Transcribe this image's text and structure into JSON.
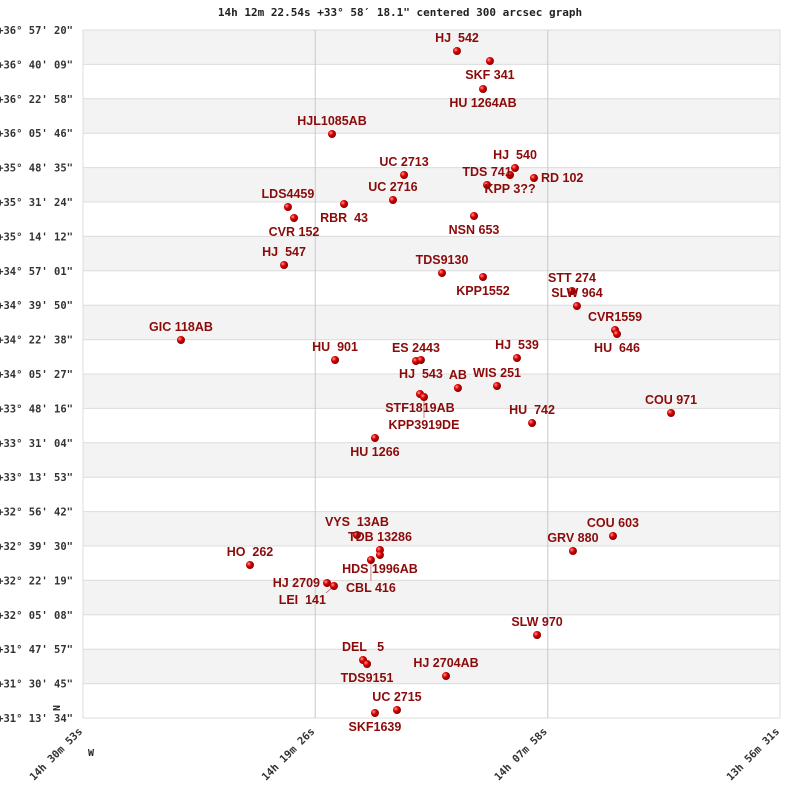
{
  "chart_data": {
    "type": "scatter",
    "title": "14h 12m 22.54s +33° 58′ 18.1\" centered 300 arcsec graph",
    "x_axis": {
      "quantity": "RA (hours)",
      "range": [
        14.51472,
        13.94194
      ],
      "tick_values": [
        14.51472,
        14.32389,
        14.13278,
        13.94194
      ],
      "tick_labels": [
        "14h 30m 53s",
        "14h 19m 26s",
        "14h 07m 58s",
        "13h 56m 31s"
      ]
    },
    "y_axis": {
      "quantity": "Dec (degrees)",
      "range": [
        36.95556,
        31.22611
      ],
      "tick_labels": [
        "+36° 57' 20\"",
        "+36° 40' 09\"",
        "+36° 22' 58\"",
        "+36° 05' 46\"",
        "+35° 48' 35\"",
        "+35° 31' 24\"",
        "+35° 14' 12\"",
        "+34° 57' 01\"",
        "+34° 39' 50\"",
        "+34° 22' 38\"",
        "+34° 05' 27\"",
        "+33° 48' 16\"",
        "+33° 31' 04\"",
        "+33° 13' 53\"",
        "+32° 56' 42\"",
        "+32° 39' 30\"",
        "+32° 22' 19\"",
        "+32° 05' 08\"",
        "+31° 47' 57\"",
        "+31° 30' 45\"",
        "+31° 13' 34\""
      ]
    },
    "compass": {
      "north": "N",
      "west": "W"
    },
    "grid": true,
    "point_color": "#e00000",
    "label_color": "#8b0a0a",
    "points": [
      {
        "name": "HJ  542",
        "ra": 14.2074,
        "dec": 36.7807
      },
      {
        "name": "SKF 341",
        "ra": 14.1803,
        "dec": 36.6974
      },
      {
        "name": "HU 1264AB",
        "ra": 14.186,
        "dec": 36.4642
      },
      {
        "name": "HJL1085AB",
        "ra": 14.3101,
        "dec": 36.0895
      },
      {
        "name": "UC 2713",
        "ra": 14.2509,
        "dec": 35.748
      },
      {
        "name": "HJ  540",
        "ra": 14.1597,
        "dec": 35.8063
      },
      {
        "name": "KPP 3??",
        "ra": 14.1638,
        "dec": 35.748
      },
      {
        "name": "RD 102",
        "ra": 14.1441,
        "dec": 35.7231
      },
      {
        "name": "TDS 741",
        "ra": 14.1827,
        "dec": 35.6648
      },
      {
        "name": "UC 2716",
        "ra": 14.26,
        "dec": 35.5399
      },
      {
        "name": "RBR  43",
        "ra": 14.3002,
        "dec": 35.5066
      },
      {
        "name": "LDS4459",
        "ra": 14.3463,
        "dec": 35.4816
      },
      {
        "name": "CVR 152",
        "ra": 14.3413,
        "dec": 35.39
      },
      {
        "name": "NSN 653",
        "ra": 14.1934,
        "dec": 35.4066
      },
      {
        "name": "HJ  547",
        "ra": 14.3495,
        "dec": 34.9985
      },
      {
        "name": "TDS9130",
        "ra": 14.2197,
        "dec": 34.932
      },
      {
        "name": "KPP1552",
        "ra": 14.186,
        "dec": 34.8987
      },
      {
        "name": "STT 274",
        "ra": 14.1129,
        "dec": 34.7821
      },
      {
        "name": "SLW 964",
        "ra": 14.1088,
        "dec": 34.6572
      },
      {
        "name": "CVR1559",
        "ra": 14.0775,
        "dec": 34.4573
      },
      {
        "name": "HU  646",
        "ra": 14.0759,
        "dec": 34.424
      },
      {
        "name": "GIC 118AB",
        "ra": 14.4342,
        "dec": 34.374
      },
      {
        "name": "HU  901",
        "ra": 14.3076,
        "dec": 34.2074
      },
      {
        "name": "ES 2443",
        "ra": 14.2411,
        "dec": 34.1991
      },
      {
        "name": "HJ  543",
        "ra": 14.237,
        "dec": 34.2074
      },
      {
        "name": "HJ  539",
        "ra": 14.1581,
        "dec": 34.2241
      },
      {
        "name": "WIS 251",
        "ra": 14.1745,
        "dec": 33.9909
      },
      {
        "name": "AB",
        "ra": 14.2066,
        "dec": 33.9742
      },
      {
        "name": "STF1819AB",
        "ra": 14.2378,
        "dec": 33.9243
      },
      {
        "name": "KPP3919DE",
        "ra": 14.2345,
        "dec": 33.8993
      },
      {
        "name": "HU  742",
        "ra": 14.1457,
        "dec": 33.6828
      },
      {
        "name": "COU 971",
        "ra": 14.0315,
        "dec": 33.7661
      },
      {
        "name": "HU 1266",
        "ra": 14.2748,
        "dec": 33.5579
      },
      {
        "name": "VYS  13AB",
        "ra": 14.2896,
        "dec": 32.7501
      },
      {
        "name": "TDB 13286",
        "ra": 14.2707,
        "dec": 32.6252
      },
      {
        "name": "HDS 1996AB",
        "ra": 14.2707,
        "dec": 32.5836
      },
      {
        "name": "CBL 416",
        "ra": 14.2781,
        "dec": 32.5419
      },
      {
        "name": "COU 603",
        "ra": 14.0792,
        "dec": 32.7418
      },
      {
        "name": "GRV 880",
        "ra": 14.1121,
        "dec": 32.6169
      },
      {
        "name": "HO  262",
        "ra": 14.3775,
        "dec": 32.5003
      },
      {
        "name": "HJ 2709",
        "ra": 14.3142,
        "dec": 32.3504
      },
      {
        "name": "LEI  141",
        "ra": 14.3085,
        "dec": 32.3254
      },
      {
        "name": "SLW 970",
        "ra": 14.1416,
        "dec": 31.9173
      },
      {
        "name": "DEL   5",
        "ra": 14.2846,
        "dec": 31.7091
      },
      {
        "name": "TDS9151",
        "ra": 14.2813,
        "dec": 31.6758
      },
      {
        "name": "HJ 2704AB",
        "ra": 14.2164,
        "dec": 31.5759
      },
      {
        "name": "UC 2715",
        "ra": 14.2567,
        "dec": 31.2928
      },
      {
        "name": "SKF1639",
        "ra": 14.2748,
        "dec": 31.2678
      }
    ]
  }
}
